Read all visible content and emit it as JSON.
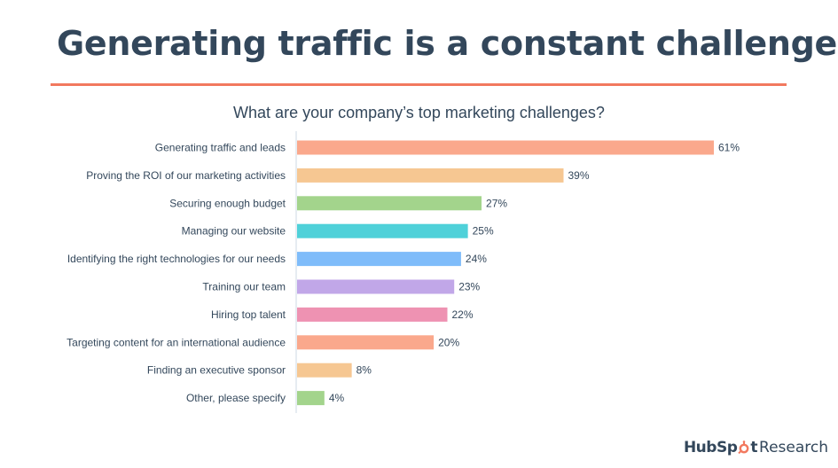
{
  "title": "Generating traffic is a constant challenge",
  "accent_color": "#f2795f",
  "text_color": "#33475b",
  "brand": {
    "logo_text_before": "HubSp",
    "logo_icon": "sprocket-icon",
    "logo_text_after": "t",
    "suffix": "Research"
  },
  "chart_data": {
    "type": "bar",
    "orientation": "horizontal",
    "title": "What are your company’s top marketing challenges?",
    "xlabel": "",
    "ylabel": "",
    "xlim": [
      0,
      61
    ],
    "grid": false,
    "legend": "none",
    "value_suffix": "%",
    "categories": [
      "Generating traffic and leads",
      "Proving the ROI of our marketing activities",
      "Securing enough budget",
      "Managing our website",
      "Identifying the right technologies for our needs",
      "Training our team",
      "Hiring top talent",
      "Targeting content for an international audience",
      "Finding an executive sponsor",
      "Other, please specify"
    ],
    "values": [
      61,
      39,
      27,
      25,
      24,
      23,
      22,
      20,
      8,
      4
    ],
    "colors": [
      "#faa88c",
      "#f6c792",
      "#a3d48c",
      "#4fd1d9",
      "#7fbcfa",
      "#c1a7e8",
      "#ee92b2",
      "#faa88c",
      "#f6c792",
      "#a3d48c"
    ]
  }
}
